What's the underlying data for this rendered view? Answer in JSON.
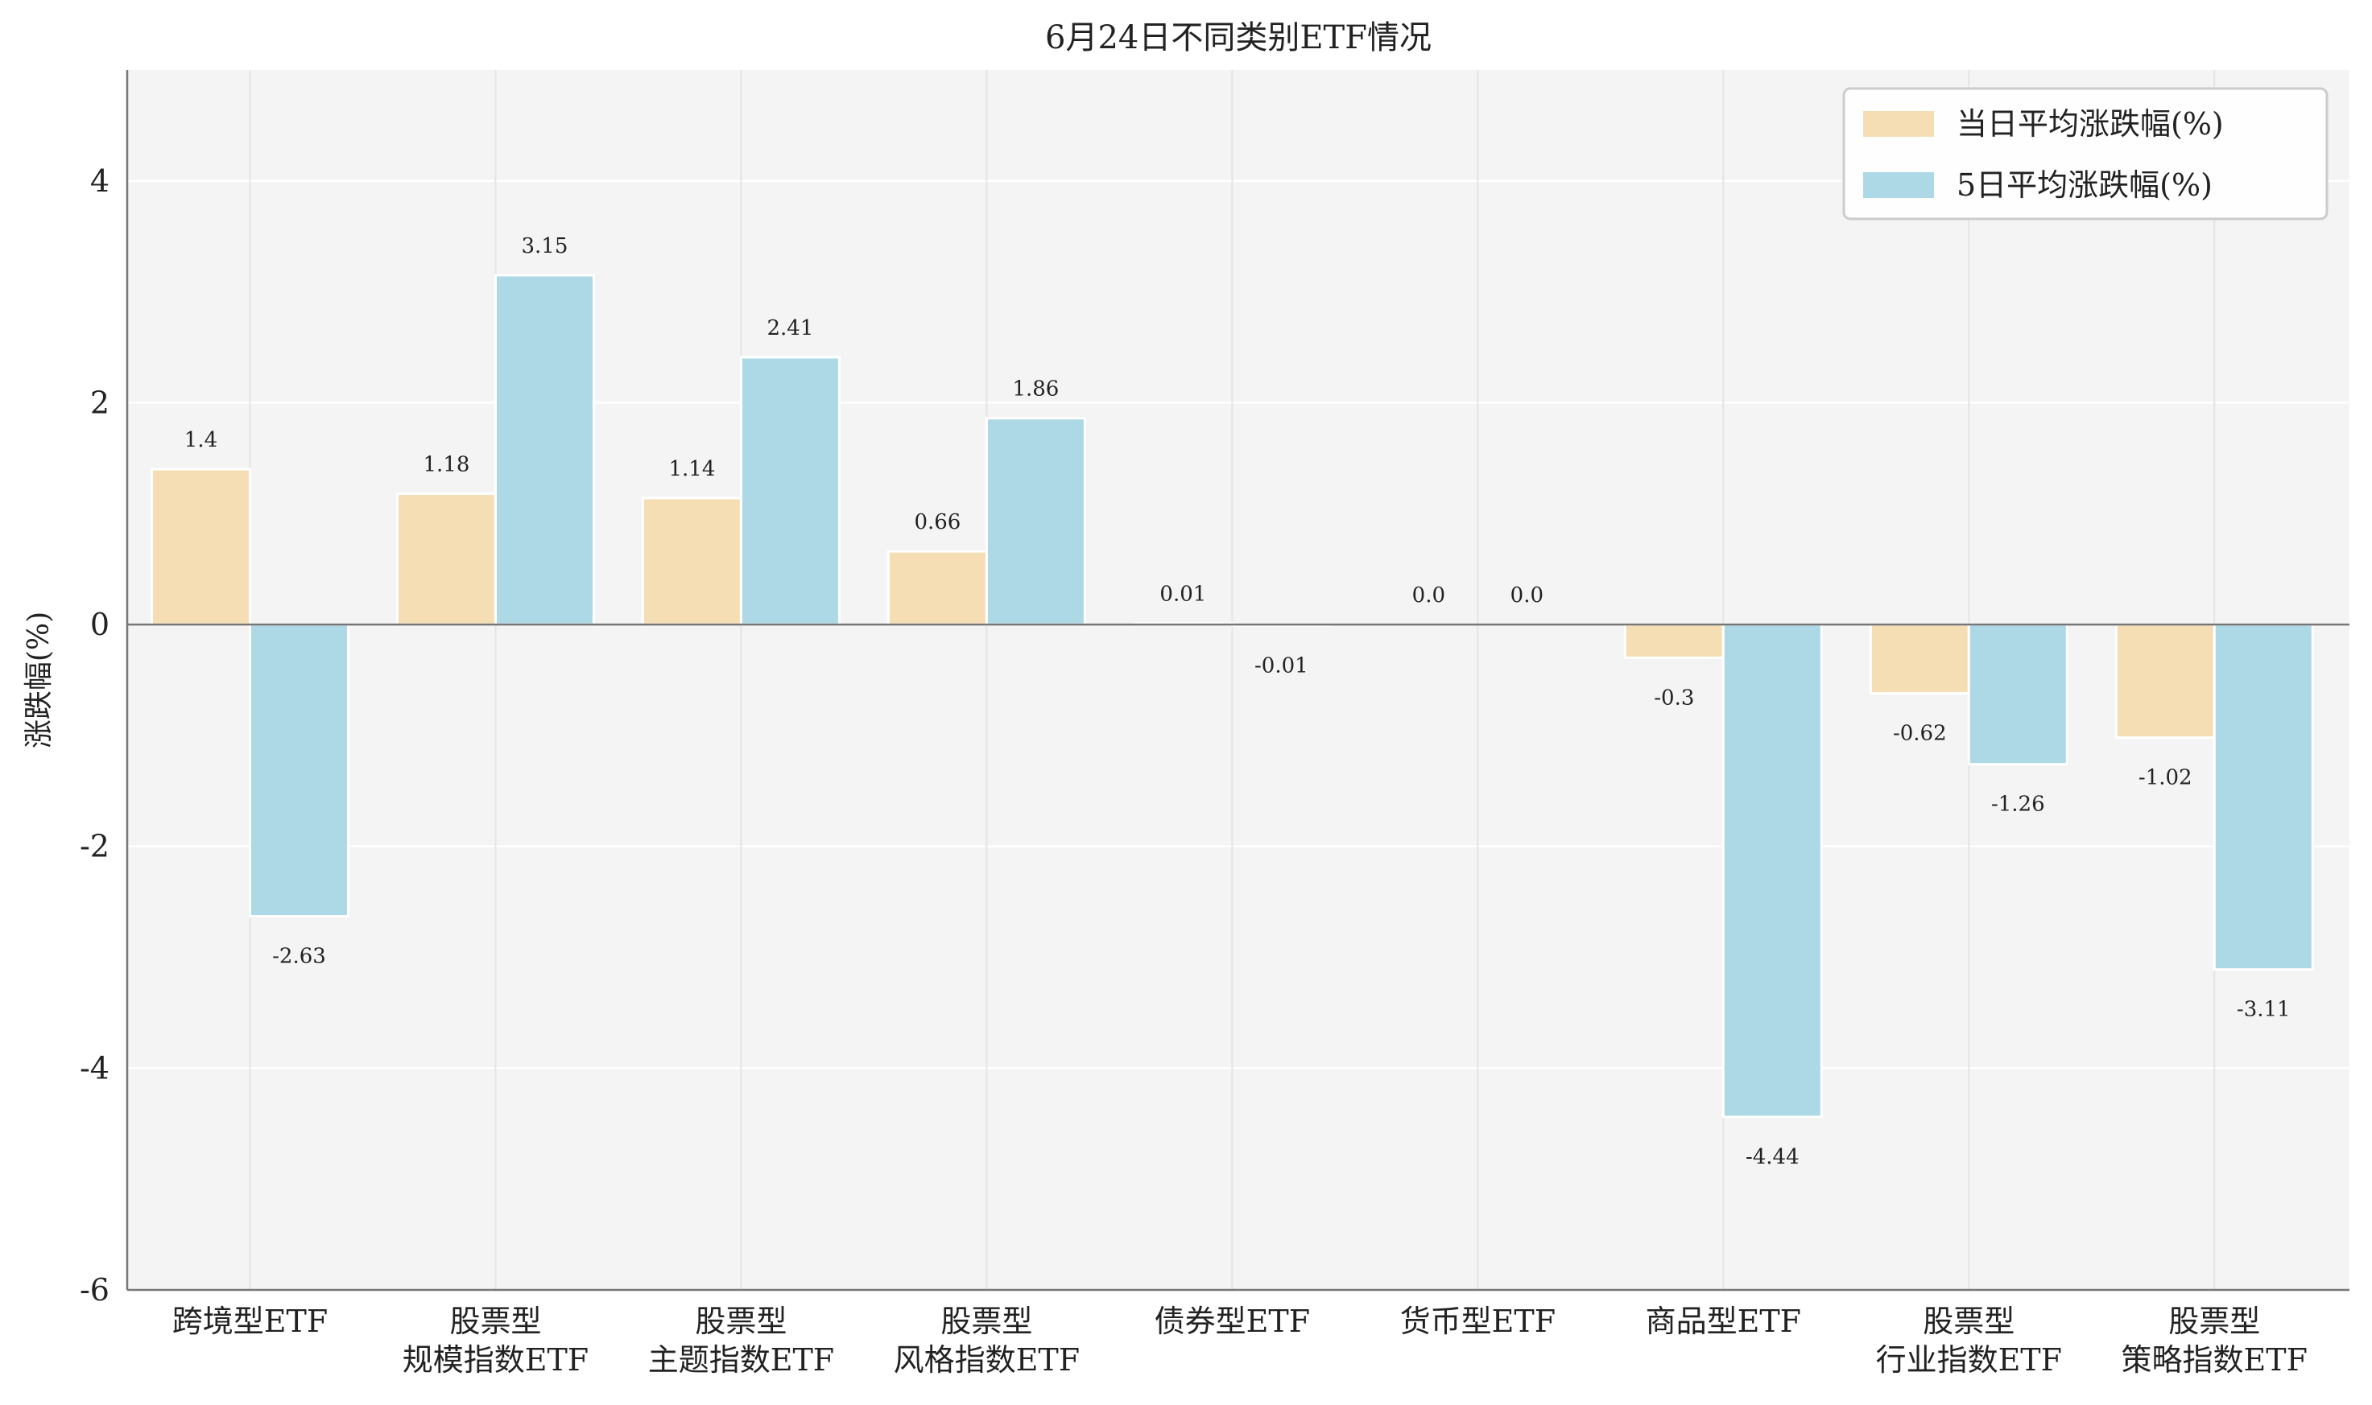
{
  "chart_data": {
    "type": "bar",
    "title": "6月24日不同类别ETF情况",
    "xlabel": "",
    "ylabel": "涨跌幅(%)",
    "ylim": [
      -6,
      5
    ],
    "yticks": [
      -6,
      -4,
      -2,
      0,
      2,
      4
    ],
    "grid": true,
    "legend_position": "top-right",
    "categories": [
      [
        "跨境型ETF"
      ],
      [
        "股票型",
        "规模指数ETF"
      ],
      [
        "股票型",
        "主题指数ETF"
      ],
      [
        "股票型",
        "风格指数ETF"
      ],
      [
        "债券型ETF"
      ],
      [
        "货币型ETF"
      ],
      [
        "商品型ETF"
      ],
      [
        "股票型",
        "行业指数ETF"
      ],
      [
        "股票型",
        "策略指数ETF"
      ]
    ],
    "series": [
      {
        "name": "当日平均涨跌幅(%)",
        "color": "#f5deb3",
        "values": [
          1.4,
          1.18,
          1.14,
          0.66,
          0.01,
          0.0,
          -0.3,
          -0.62,
          -1.02
        ],
        "labels": [
          "1.4",
          "1.18",
          "1.14",
          "0.66",
          "0.01",
          "0.0",
          "-0.3",
          "-0.62",
          "-1.02"
        ]
      },
      {
        "name": "5日平均涨跌幅(%)",
        "color": "#add8e6",
        "values": [
          -2.63,
          3.15,
          2.41,
          1.86,
          -0.01,
          0.0,
          -4.44,
          -1.26,
          -3.11
        ],
        "labels": [
          "-2.63",
          "3.15",
          "2.41",
          "1.86",
          "-0.01",
          "0.0",
          "-4.44",
          "-1.26",
          "-3.11"
        ]
      }
    ]
  }
}
